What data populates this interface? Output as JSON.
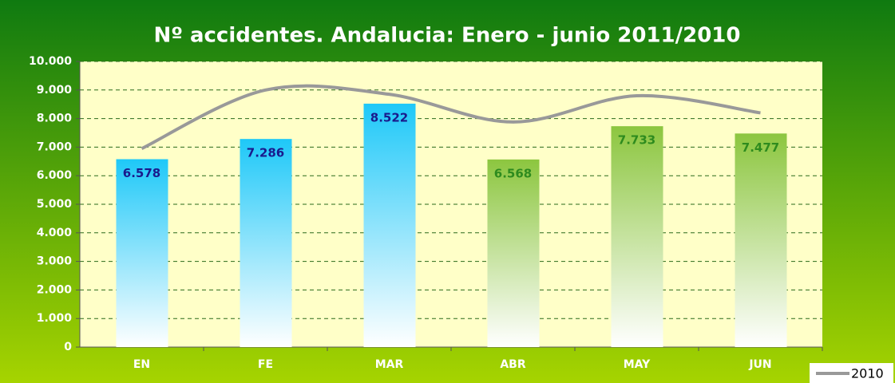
{
  "chart_data": {
    "type": "bar",
    "title": "Nº accidentes. Andalucia: Enero - junio 2011/2010",
    "categories": [
      "EN",
      "FE",
      "MAR",
      "ABR",
      "MAY",
      "JUN"
    ],
    "values": [
      6578,
      7286,
      8522,
      6568,
      7733,
      7477
    ],
    "value_labels": [
      "6.578",
      "7.286",
      "8.522",
      "6.568",
      "7.733",
      "7.477"
    ],
    "colors": [
      "#1ec8f8",
      "#1ec8f8",
      "#1ec8f8",
      "#8cc63f",
      "#8cc63f",
      "#8cc63f"
    ],
    "label_colors": [
      "#1a1a8c",
      "#1a1a8c",
      "#1a1a8c",
      "#2e8b1e",
      "#2e8b1e",
      "#2e8b1e"
    ],
    "series": [
      {
        "name": "2010",
        "type": "line",
        "color": "#999999",
        "values": [
          6950,
          9000,
          8850,
          7880,
          8800,
          8200
        ]
      }
    ],
    "ylim": [
      0,
      10000
    ],
    "yticks": [
      0,
      {
        "value": 1000,
        "label": "1.000"
      },
      {
        "value": 2000,
        "label": "2.000"
      },
      {
        "value": 3000,
        "label": "3.000"
      },
      {
        "value": 4000,
        "label": "4.000"
      },
      {
        "value": 5000,
        "label": "5.000"
      },
      {
        "value": 6000,
        "label": "6.000"
      },
      {
        "value": 7000,
        "label": "7.000"
      },
      {
        "value": 8000,
        "label": "8.000"
      },
      {
        "value": 9000,
        "label": "9.000"
      },
      {
        "value": 10000,
        "label": "10.000"
      }
    ],
    "grid": true,
    "legend": "bottom-right"
  }
}
